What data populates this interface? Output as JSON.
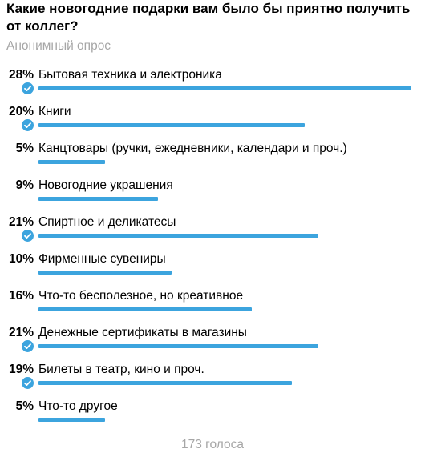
{
  "poll": {
    "question": "Какие новогодние подарки вам было бы приятно получить от коллег?",
    "type_label": "Анонимный опрос",
    "total_votes": "173 голоса",
    "accent_color": "#3ca4de",
    "options": [
      {
        "percent_label": "28%",
        "percent": 28,
        "text": "Бытовая техника и электроника",
        "chosen": true
      },
      {
        "percent_label": "20%",
        "percent": 20,
        "text": "Книги",
        "chosen": true
      },
      {
        "percent_label": "5%",
        "percent": 5,
        "text": "Канцтовары (ручки, ежедневники, календари и проч.)",
        "chosen": false
      },
      {
        "percent_label": "9%",
        "percent": 9,
        "text": "Новогодние украшения",
        "chosen": false
      },
      {
        "percent_label": "21%",
        "percent": 21,
        "text": "Спиртное и деликатесы",
        "chosen": true
      },
      {
        "percent_label": "10%",
        "percent": 10,
        "text": "Фирменные сувениры",
        "chosen": false
      },
      {
        "percent_label": "16%",
        "percent": 16,
        "text": "Что-то бесполезное, но креативное",
        "chosen": false
      },
      {
        "percent_label": "21%",
        "percent": 21,
        "text": "Денежные сертификаты в магазины",
        "chosen": true
      },
      {
        "percent_label": "19%",
        "percent": 19,
        "text": "Билеты в театр, кино и проч.",
        "chosen": true
      },
      {
        "percent_label": "5%",
        "percent": 5,
        "text": "Что-то другое",
        "chosen": false
      }
    ]
  }
}
